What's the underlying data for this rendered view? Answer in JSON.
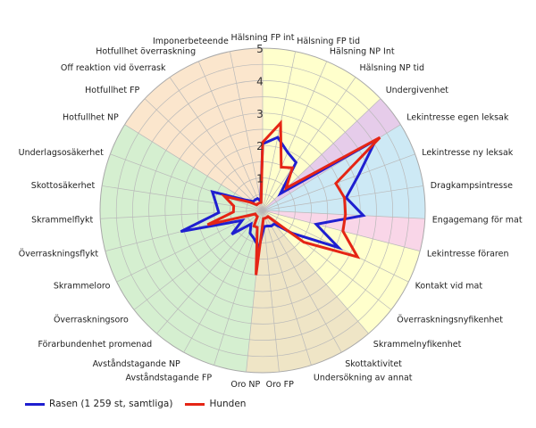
{
  "chart_data": {
    "type": "radar",
    "rlim": [
      0,
      5
    ],
    "rticks": [
      1,
      2,
      3,
      4,
      5
    ],
    "grid": true,
    "legend_position": "bottom-left",
    "categories": [
      "Hälsning FP int",
      "Hälsning FP tid",
      "Hälsning NP Int",
      "Hälsning NP tid",
      "Undergivenhet",
      "Lekintresse egen leksak",
      "Lekintresse ny leksak",
      "Dragkampsintresse",
      "Engagemang för mat",
      "Lekintresse föraren",
      "Kontakt vid mat",
      "Överraskningsnyfikenhet",
      "Skrammelnyfikenhet",
      "Skottaktivitet",
      "Undersökning av annat",
      "Oro FP",
      "Oro NP",
      "Avståndstagande FP",
      "Avståndstagande NP",
      "Förarbundenhet promenad",
      "Överraskningsoro",
      "Skrammeloro",
      "Överraskningsflykt",
      "Skrammelflykt",
      "Skottosäkerhet",
      "Underlagsosäkerhet",
      "Hotfullhet NP",
      "Hotfullhet FP",
      "Off reaktion vid överrask",
      "Hotfullhet överraskning",
      "Imponerbeteende"
    ],
    "series": [
      {
        "name": "Rasen (1 259 st, samtliga)",
        "color": "#1f1fd0",
        "values": [
          2.05,
          2.3,
          1.95,
          1.8,
          0.75,
          4.1,
          3.15,
          2.6,
          3.1,
          1.7,
          2.6,
          1.15,
          0.55,
          0.55,
          0.5,
          0.5,
          1.15,
          0.9,
          0.8,
          0.55,
          1.2,
          0.7,
          2.6,
          1.35,
          1.45,
          1.65,
          0.6,
          0.4,
          0.4,
          0.4,
          0.3
        ]
      },
      {
        "name": "Hunden",
        "color": "#e52515",
        "values": [
          2.1,
          2.75,
          1.45,
          1.6,
          1.0,
          4.25,
          2.4,
          2.55,
          2.55,
          2.55,
          3.25,
          1.6,
          0.25,
          0.25,
          0.25,
          0.25,
          2.0,
          0.55,
          0.55,
          0.25,
          0.25,
          0.25,
          1.75,
          0.9,
          0.9,
          1.25,
          0.5,
          0.25,
          0.25,
          0.25,
          0.25
        ]
      }
    ],
    "background_sectors": [
      {
        "from_index": 0,
        "to_index": 4,
        "color": "#ffffcc"
      },
      {
        "from_index": 4,
        "to_index": 5,
        "color": "#e6ccea"
      },
      {
        "from_index": 5,
        "to_index": 8,
        "color": "#cde9f5"
      },
      {
        "from_index": 8,
        "to_index": 9,
        "color": "#f9d6e8"
      },
      {
        "from_index": 9,
        "to_index": 12,
        "color": "#ffffcc"
      },
      {
        "from_index": 12,
        "to_index": 16,
        "color": "#efe5c6"
      },
      {
        "from_index": 16,
        "to_index": 26,
        "color": "#d5efd0"
      },
      {
        "from_index": 26,
        "to_index": 31,
        "color": "#fbe6cd"
      }
    ]
  }
}
